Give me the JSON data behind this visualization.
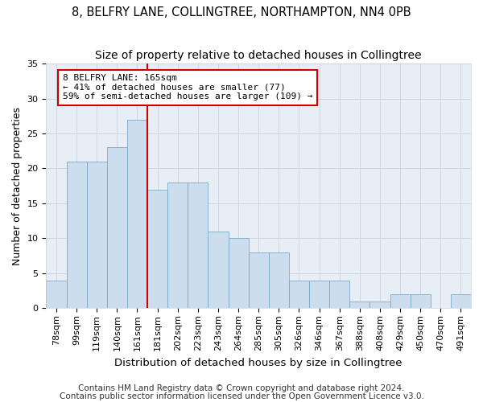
{
  "title1": "8, BELFRY LANE, COLLINGTREE, NORTHAMPTON, NN4 0PB",
  "title2": "Size of property relative to detached houses in Collingtree",
  "xlabel": "Distribution of detached houses by size in Collingtree",
  "ylabel": "Number of detached properties",
  "categories": [
    "78sqm",
    "99sqm",
    "119sqm",
    "140sqm",
    "161sqm",
    "181sqm",
    "202sqm",
    "223sqm",
    "243sqm",
    "264sqm",
    "285sqm",
    "305sqm",
    "326sqm",
    "346sqm",
    "367sqm",
    "388sqm",
    "408sqm",
    "429sqm",
    "450sqm",
    "470sqm",
    "491sqm"
  ],
  "values": [
    4,
    21,
    21,
    23,
    27,
    17,
    18,
    18,
    11,
    10,
    8,
    8,
    4,
    4,
    4,
    1,
    1,
    2,
    2,
    0,
    2
  ],
  "bar_color": "#ccdded",
  "bar_edge_color": "#7aaac8",
  "vline_color": "#cc0000",
  "annotation_text": "8 BELFRY LANE: 165sqm\n← 41% of detached houses are smaller (77)\n59% of semi-detached houses are larger (109) →",
  "annotation_box_color": "#ffffff",
  "annotation_box_edge_color": "#cc0000",
  "ylim": [
    0,
    35
  ],
  "yticks": [
    0,
    5,
    10,
    15,
    20,
    25,
    30,
    35
  ],
  "footer1": "Contains HM Land Registry data © Crown copyright and database right 2024.",
  "footer2": "Contains public sector information licensed under the Open Government Licence v3.0.",
  "bg_color": "#ffffff",
  "plot_bg_color": "#e8eef5",
  "grid_color": "#c8d4e0",
  "title1_fontsize": 10.5,
  "title2_fontsize": 10,
  "xlabel_fontsize": 9.5,
  "ylabel_fontsize": 9,
  "tick_fontsize": 8,
  "footer_fontsize": 7.5,
  "vline_bar_index": 4
}
